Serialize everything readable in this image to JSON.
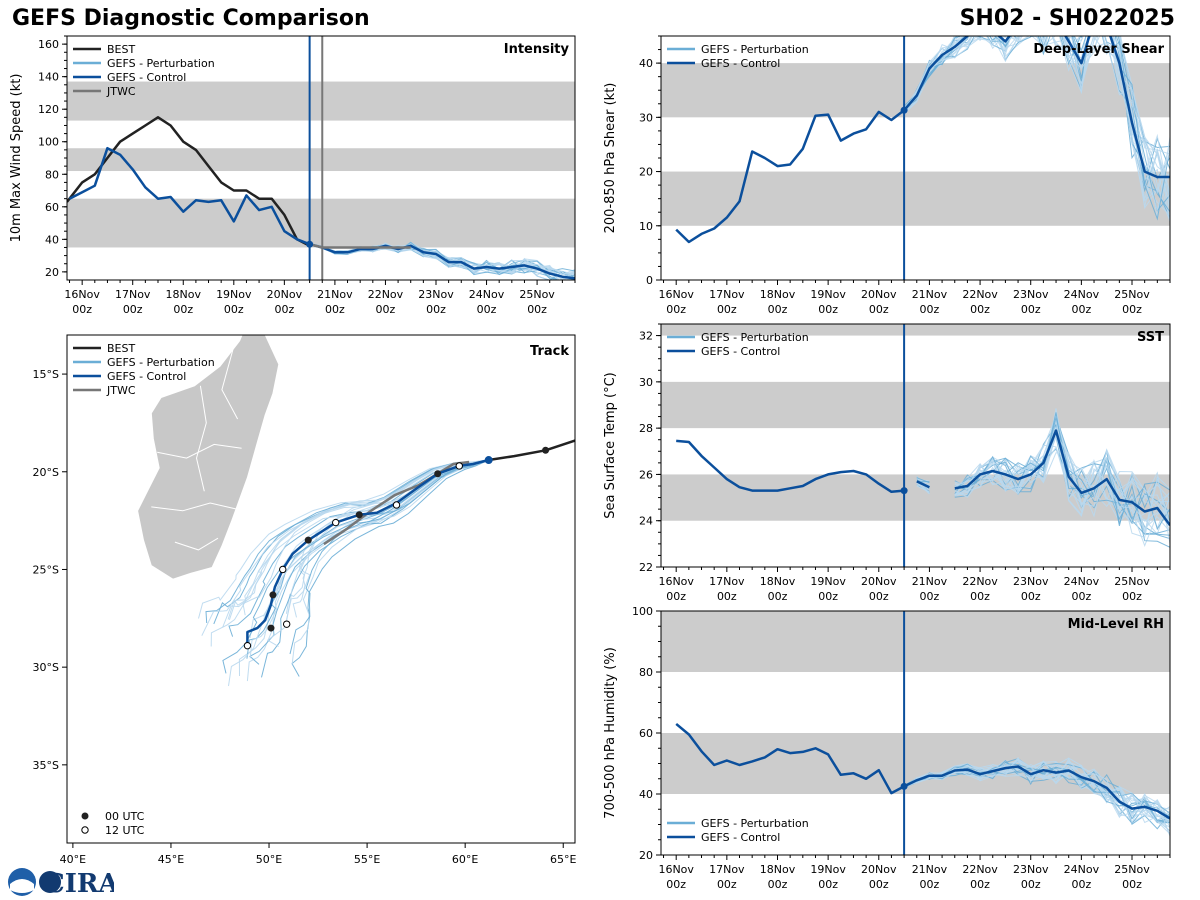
{
  "header": {
    "title": "GEFS Diagnostic Comparison",
    "storm_id": "SH02 - SH022025"
  },
  "colors": {
    "best": "#222222",
    "perturbation": "#6baed6",
    "control": "#0b4f9c",
    "jtwc": "#777777",
    "band": "#cccccc",
    "ens_light": "#b9d8ee"
  },
  "legend_labels": {
    "best": "BEST",
    "perturbation": "GEFS - Perturbation",
    "control": "GEFS - Control",
    "jtwc": "JTWC",
    "utc00": "00 UTC",
    "utc12": "12 UTC"
  },
  "logo_text": "CIRA",
  "chart_data": [
    {
      "id": "intensity",
      "type": "line",
      "title": "Intensity",
      "ylabel": "10m Max Wind Speed (kt)",
      "xlabel": "",
      "xlim": [
        -0.3,
        9.75
      ],
      "ylim": [
        15,
        165
      ],
      "xticks": [
        0,
        1,
        2,
        3,
        4,
        5,
        6,
        7,
        8,
        9
      ],
      "xtick_labels_top": [
        "16Nov",
        "17Nov",
        "18Nov",
        "19Nov",
        "20Nov",
        "21Nov",
        "22Nov",
        "23Nov",
        "24Nov",
        "25Nov"
      ],
      "xtick_labels_bottom": [
        "00z",
        "00z",
        "00z",
        "00z",
        "00z",
        "00z",
        "00z",
        "00z",
        "00z",
        "00z"
      ],
      "yticks": [
        20,
        40,
        60,
        80,
        100,
        120,
        140,
        160
      ],
      "bands": [
        [
          35,
          65
        ],
        [
          82,
          96
        ],
        [
          113,
          137
        ]
      ],
      "init_day": 4.5,
      "jtwc_line_day": 4.75,
      "series": [
        {
          "name": "BEST",
          "x": [
            -0.3,
            -0.25,
            0,
            0.25,
            0.5,
            0.75,
            1,
            1.25,
            1.5,
            1.75,
            2,
            2.25,
            2.5,
            2.75,
            3,
            3.25,
            3.5,
            3.75,
            4,
            4.25,
            4.5
          ],
          "y": [
            63,
            65,
            75,
            80,
            90,
            100,
            105,
            110,
            115,
            110,
            100,
            95,
            85,
            75,
            70,
            70,
            65,
            65,
            55,
            40,
            36
          ]
        },
        {
          "name": "GEFS - Control",
          "x": [
            -0.25,
            0,
            0.25,
            0.5,
            0.75,
            1,
            1.25,
            1.5,
            1.75,
            2,
            2.25,
            2.5,
            2.75,
            3,
            3.25,
            3.5,
            3.75,
            4,
            4.25,
            4.5,
            4.75,
            5,
            5.25,
            5.5,
            5.75,
            6,
            6.25,
            6.5,
            6.75,
            7,
            7.25,
            7.5,
            7.75,
            8,
            8.25,
            8.5,
            8.75,
            9,
            9.25,
            9.5,
            9.75
          ],
          "y": [
            65,
            69,
            73,
            96,
            92,
            83,
            72,
            65,
            66,
            57,
            64,
            63,
            64,
            51,
            67,
            58,
            60,
            45,
            40,
            37,
            35,
            32,
            32,
            34,
            34,
            36,
            34,
            36,
            32,
            31,
            26,
            26,
            22,
            23,
            22,
            23,
            24,
            22,
            19,
            17,
            16
          ]
        },
        {
          "name": "JTWC",
          "x": [
            4.5,
            4.75,
            5,
            5.5,
            6,
            6.5
          ],
          "y": [
            37,
            35,
            35,
            35,
            35,
            35
          ]
        }
      ]
    },
    {
      "id": "shear",
      "type": "line",
      "title": "Deep-Layer Shear",
      "ylabel": "200-850 hPa Shear (kt)",
      "xlabel": "",
      "xlim": [
        -0.3,
        9.75
      ],
      "ylim": [
        0,
        45
      ],
      "xticks": [
        0,
        1,
        2,
        3,
        4,
        5,
        6,
        7,
        8,
        9
      ],
      "xtick_labels_top": [
        "16Nov",
        "17Nov",
        "18Nov",
        "19Nov",
        "20Nov",
        "21Nov",
        "22Nov",
        "23Nov",
        "24Nov",
        "25Nov"
      ],
      "xtick_labels_bottom": [
        "00z",
        "00z",
        "00z",
        "00z",
        "00z",
        "00z",
        "00z",
        "00z",
        "00z",
        "00z"
      ],
      "yticks": [
        0,
        10,
        20,
        30,
        40
      ],
      "bands": [
        [
          10,
          20
        ],
        [
          30,
          40
        ]
      ],
      "init_day": 4.5,
      "series": [
        {
          "name": "GEFS - Control",
          "x": [
            0,
            0.25,
            0.5,
            0.75,
            1,
            1.25,
            1.5,
            1.75,
            2,
            2.25,
            2.5,
            2.75,
            3,
            3.25,
            3.5,
            3.75,
            4,
            4.25,
            4.5,
            4.75,
            5,
            5.25,
            5.5,
            5.75,
            6,
            6.25,
            6.5,
            6.75,
            7,
            7.25,
            7.5,
            7.75,
            8,
            8.25,
            8.5,
            8.75,
            9,
            9.25,
            9.5,
            9.75
          ],
          "y": [
            9.3,
            7,
            8.5,
            9.5,
            11.5,
            14.5,
            23.7,
            22.5,
            21,
            21.3,
            24.2,
            30.3,
            30.5,
            25.7,
            27,
            27.8,
            31,
            29.5,
            31.3,
            34,
            39,
            41.5,
            43,
            45,
            47,
            46,
            44,
            47,
            49,
            46,
            48,
            44,
            40,
            48,
            47,
            40,
            29,
            20,
            19,
            19
          ]
        }
      ]
    },
    {
      "id": "track",
      "type": "scatter",
      "title": "Track",
      "xlabel": "",
      "ylabel": "",
      "xlim": [
        39.7,
        65.6
      ],
      "ylim": [
        -39,
        -13
      ],
      "xticks": [
        40,
        45,
        50,
        55,
        60,
        65
      ],
      "xtick_labels": [
        "40°E",
        "45°E",
        "50°E",
        "55°E",
        "60°E",
        "65°E"
      ],
      "yticks": [
        -15,
        -20,
        -25,
        -30,
        -35
      ],
      "ytick_labels": [
        "15°S",
        "20°S",
        "25°S",
        "30°S",
        "35°S"
      ],
      "series": [
        {
          "name": "BEST",
          "lon": [
            65.6,
            64.1,
            62.5,
            61.2
          ],
          "lat": [
            -18.4,
            -18.9,
            -19.2,
            -19.4
          ]
        },
        {
          "name": "GEFS - Control",
          "lon": [
            61.2,
            60.4,
            59.7,
            58.6,
            57.6,
            56.5,
            55.5,
            54.6,
            53.4,
            52.0,
            51.2,
            50.7,
            50.3,
            50.2,
            50.1,
            49.8,
            49.4,
            48.9,
            48.9
          ],
          "lat": [
            -19.4,
            -19.6,
            -19.7,
            -20.1,
            -20.8,
            -21.6,
            -22.1,
            -22.2,
            -22.6,
            -23.5,
            -24.2,
            -25.0,
            -25.9,
            -26.3,
            -26.8,
            -27.6,
            -28.0,
            -28.2,
            -29.0
          ]
        },
        {
          "name": "JTWC",
          "lon": [
            60.2,
            59.4,
            58.6,
            57.6,
            56.4,
            55.2,
            54.0,
            52.8
          ],
          "lat": [
            -19.5,
            -19.6,
            -20.1,
            -20.7,
            -21.2,
            -22.0,
            -22.9,
            -23.7
          ]
        },
        {
          "name": "00 UTC",
          "lon": [
            64.1,
            61.2,
            58.6,
            54.6,
            52.0,
            50.2,
            50.1
          ],
          "lat": [
            -18.9,
            -19.4,
            -20.1,
            -22.2,
            -23.5,
            -26.3,
            -28.0
          ]
        },
        {
          "name": "12 UTC",
          "lon": [
            59.7,
            56.5,
            53.4,
            50.7,
            50.9,
            48.9
          ],
          "lat": [
            -19.7,
            -21.7,
            -22.6,
            -25.0,
            -27.8,
            -28.9
          ]
        }
      ]
    },
    {
      "id": "sst",
      "type": "line",
      "title": "SST",
      "ylabel": "Sea Surface Temp (°C)",
      "xlabel": "",
      "xlim": [
        -0.3,
        9.75
      ],
      "ylim": [
        22,
        32.5
      ],
      "xticks": [
        0,
        1,
        2,
        3,
        4,
        5,
        6,
        7,
        8,
        9
      ],
      "xtick_labels_top": [
        "16Nov",
        "17Nov",
        "18Nov",
        "19Nov",
        "20Nov",
        "21Nov",
        "22Nov",
        "23Nov",
        "24Nov",
        "25Nov"
      ],
      "xtick_labels_bottom": [
        "00z",
        "00z",
        "00z",
        "00z",
        "00z",
        "00z",
        "00z",
        "00z",
        "00z",
        "00z"
      ],
      "yticks": [
        22,
        24,
        26,
        28,
        30,
        32
      ],
      "bands": [
        [
          24,
          26
        ],
        [
          28,
          30
        ],
        [
          32,
          33
        ]
      ],
      "init_day": 4.5,
      "series": [
        {
          "name": "GEFS - Control",
          "segments": [
            {
              "x": [
                0,
                0.25,
                0.5,
                0.75,
                1,
                1.25,
                1.5,
                1.75,
                2,
                2.25,
                2.5,
                2.75,
                3,
                3.25,
                3.5,
                3.75,
                4,
                4.25,
                4.5
              ],
              "y": [
                27.45,
                27.4,
                26.8,
                26.3,
                25.8,
                25.45,
                25.3,
                25.3,
                25.3,
                25.4,
                25.5,
                25.8,
                26,
                26.1,
                26.15,
                26,
                25.6,
                25.25,
                25.3
              ]
            },
            {
              "x": [
                4.75,
                5
              ],
              "y": [
                25.7,
                25.45
              ]
            },
            {
              "x": [
                5.5,
                5.75,
                6,
                6.25,
                6.5,
                6.75,
                7,
                7.25,
                7.5,
                7.75,
                8,
                8.25,
                8.5,
                8.75,
                9,
                9.25,
                9.5,
                9.75
              ],
              "y": [
                25.4,
                25.5,
                26,
                26.15,
                26,
                25.8,
                26,
                26.5,
                27.9,
                25.9,
                25.2,
                25.4,
                25.8,
                24.9,
                24.8,
                24.4,
                24.55,
                23.8
              ]
            }
          ]
        }
      ]
    },
    {
      "id": "rh",
      "type": "line",
      "title": "Mid-Level RH",
      "ylabel": "700-500 hPa Humidity (%)",
      "xlabel": "",
      "xlim": [
        -0.3,
        9.75
      ],
      "ylim": [
        20,
        100
      ],
      "xticks": [
        0,
        1,
        2,
        3,
        4,
        5,
        6,
        7,
        8,
        9
      ],
      "xtick_labels_top": [
        "16Nov",
        "17Nov",
        "18Nov",
        "19Nov",
        "20Nov",
        "21Nov",
        "22Nov",
        "23Nov",
        "24Nov",
        "25Nov"
      ],
      "xtick_labels_bottom": [
        "00z",
        "00z",
        "00z",
        "00z",
        "00z",
        "00z",
        "00z",
        "00z",
        "00z",
        "00z"
      ],
      "yticks": [
        20,
        40,
        60,
        80,
        100
      ],
      "bands": [
        [
          40,
          60
        ],
        [
          80,
          100
        ]
      ],
      "init_day": 4.5,
      "series": [
        {
          "name": "GEFS - Control",
          "x": [
            0,
            0.25,
            0.5,
            0.75,
            1,
            1.25,
            1.5,
            1.75,
            2,
            2.25,
            2.5,
            2.75,
            3,
            3.25,
            3.5,
            3.75,
            4,
            4.25,
            4.5,
            4.75,
            5,
            5.25,
            5.5,
            5.75,
            6,
            6.25,
            6.5,
            6.75,
            7,
            7.25,
            7.5,
            7.75,
            8,
            8.25,
            8.5,
            8.75,
            9,
            9.25,
            9.5,
            9.75
          ],
          "y": [
            63,
            59.5,
            54,
            49.5,
            51,
            49.5,
            50.7,
            52,
            54.7,
            53.4,
            53.8,
            55,
            53,
            46.3,
            46.8,
            45,
            47.8,
            40.3,
            42.5,
            44.5,
            46,
            46,
            47.7,
            48,
            46.5,
            47.5,
            48.5,
            49,
            46.5,
            47.8,
            47,
            47.7,
            45.5,
            44.2,
            42,
            37.5,
            35.2,
            35.8,
            34.5,
            32
          ]
        }
      ]
    }
  ]
}
